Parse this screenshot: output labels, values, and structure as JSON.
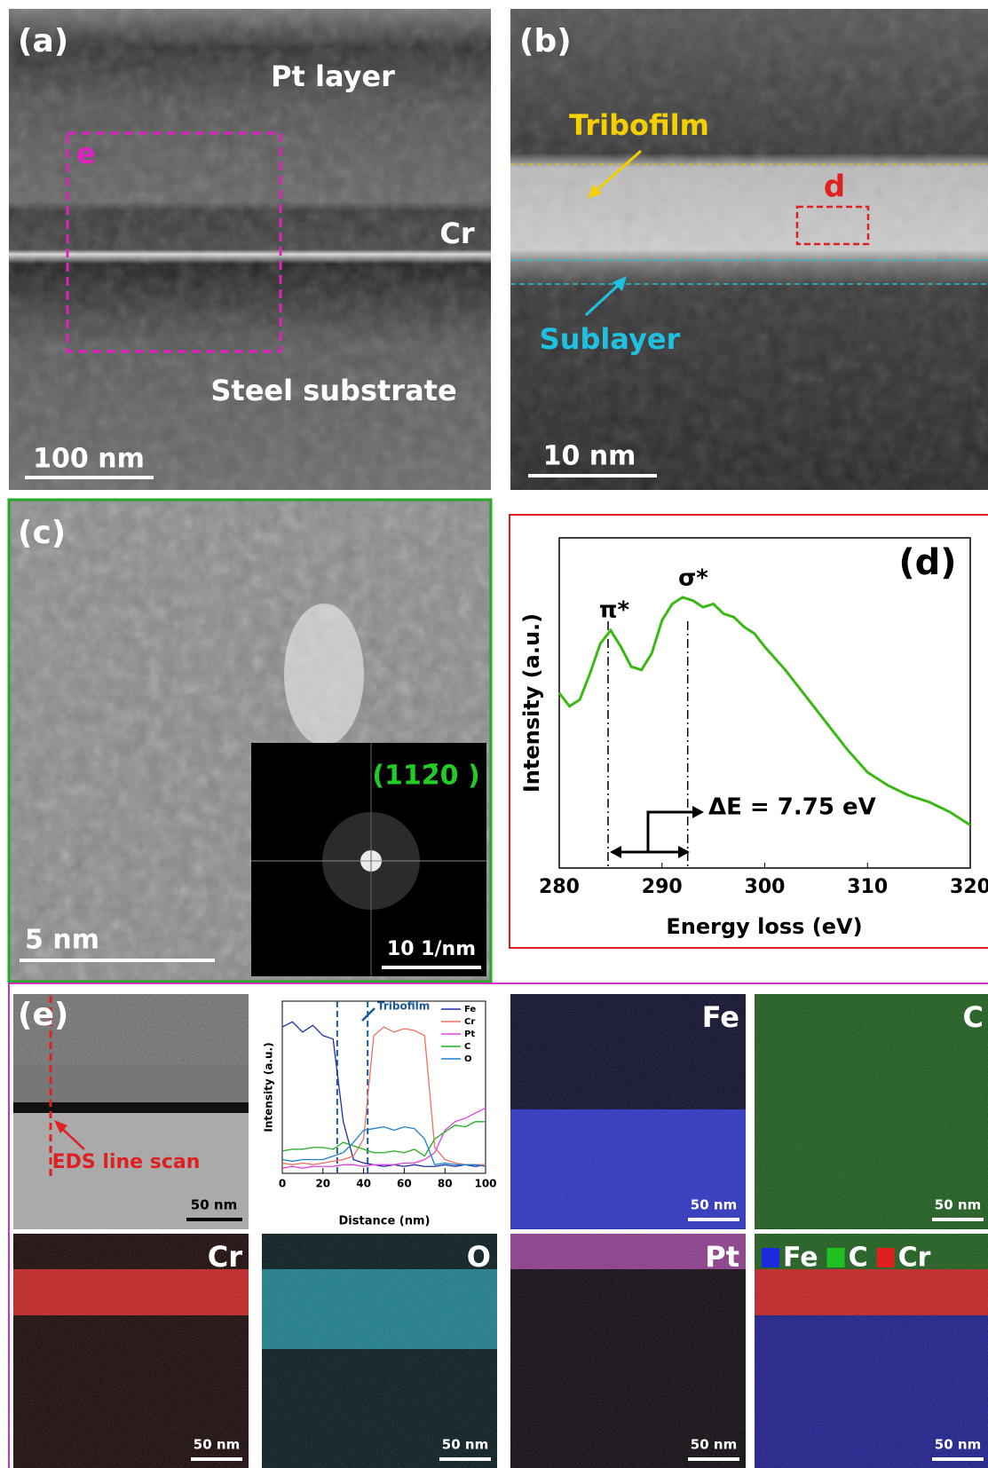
{
  "panels": {
    "a": {
      "label": "(a)",
      "annotations": [
        "Pt layer",
        "Cr",
        "Steel substrate"
      ],
      "box_label": "e",
      "scale_bar": "100 nm"
    },
    "b": {
      "label": "(b)",
      "tribofilm": "Tribofilm",
      "sublayer": "Sublayer",
      "box_label": "d",
      "scale_bar": "10 nm"
    },
    "c": {
      "label": "(c)",
      "scale_bar": "5 nm",
      "inset_label": "(112̄0 )",
      "inset_scale_bar": "10 1/nm"
    },
    "e": {
      "label": "(e)",
      "image_annotation": "EDS line scan",
      "image_scale_bar": "50 nm",
      "maps": [
        {
          "element": "Fe",
          "scale_bar": "50 nm"
        },
        {
          "element": "C",
          "scale_bar": "50 nm"
        },
        {
          "element": "Cr",
          "scale_bar": "50 nm"
        },
        {
          "element": "O",
          "scale_bar": "50 nm"
        },
        {
          "element": "Pt",
          "scale_bar": "50 nm"
        }
      ],
      "overlay_legend": [
        "Fe",
        "C",
        "Cr"
      ],
      "overlay_scale_bar": "50 nm"
    }
  },
  "chart_data": [
    {
      "type": "line",
      "panel_label": "(d)",
      "x_label": "Energy loss (eV)",
      "y_label": "Intensity (a.u.)",
      "annotations": {
        "pi": "π*",
        "sigma": "σ*",
        "delta": "ΔE = 7.75 eV"
      },
      "x": [
        280,
        281,
        282,
        283,
        284,
        285,
        286,
        287,
        288,
        289,
        290,
        291,
        292,
        293,
        294,
        295,
        296,
        297,
        298,
        299,
        300,
        302,
        304,
        306,
        308,
        310,
        312,
        314,
        316,
        318,
        320
      ],
      "series": [
        {
          "color": "#3cb814",
          "values": [
            0.53,
            0.49,
            0.51,
            0.59,
            0.68,
            0.72,
            0.67,
            0.61,
            0.6,
            0.65,
            0.75,
            0.8,
            0.82,
            0.81,
            0.79,
            0.8,
            0.77,
            0.76,
            0.73,
            0.71,
            0.67,
            0.6,
            0.52,
            0.44,
            0.36,
            0.29,
            0.25,
            0.22,
            0.2,
            0.17,
            0.13
          ]
        }
      ],
      "xlim": [
        280,
        320
      ],
      "xticks": [
        280,
        290,
        300,
        310,
        320
      ],
      "ylim": [
        0,
        1
      ],
      "reference_lines": [
        284.75,
        292.5
      ]
    },
    {
      "type": "line",
      "x_label": "Distance (nm)",
      "y_label": "Intensity (a.u.)",
      "annotation": "Tribofilm",
      "x": [
        0,
        5,
        10,
        15,
        20,
        25,
        30,
        35,
        40,
        45,
        50,
        55,
        60,
        65,
        70,
        75,
        80,
        85,
        90,
        95,
        100
      ],
      "series": [
        {
          "name": "Fe",
          "color": "#1c2ea8",
          "values": [
            0.85,
            0.88,
            0.82,
            0.86,
            0.8,
            0.78,
            0.3,
            0.08,
            0.06,
            0.05,
            0.04,
            0.05,
            0.04,
            0.05,
            0.04,
            0.04,
            0.05,
            0.04,
            0.05,
            0.04,
            0.05
          ]
        },
        {
          "name": "Cr",
          "color": "#f07060",
          "values": [
            0.06,
            0.05,
            0.06,
            0.05,
            0.06,
            0.07,
            0.08,
            0.1,
            0.2,
            0.8,
            0.85,
            0.82,
            0.84,
            0.83,
            0.8,
            0.15,
            0.08,
            0.06,
            0.05,
            0.05,
            0.05
          ]
        },
        {
          "name": "Pt",
          "color": "#e040e0",
          "values": [
            0.03,
            0.04,
            0.03,
            0.04,
            0.04,
            0.04,
            0.05,
            0.05,
            0.04,
            0.05,
            0.05,
            0.05,
            0.06,
            0.06,
            0.08,
            0.12,
            0.25,
            0.3,
            0.32,
            0.35,
            0.38
          ]
        },
        {
          "name": "C",
          "color": "#20b020",
          "values": [
            0.13,
            0.14,
            0.14,
            0.15,
            0.15,
            0.14,
            0.18,
            0.16,
            0.14,
            0.12,
            0.12,
            0.13,
            0.12,
            0.14,
            0.1,
            0.2,
            0.24,
            0.28,
            0.27,
            0.3,
            0.3
          ]
        },
        {
          "name": "O",
          "color": "#1a7fd0",
          "values": [
            0.08,
            0.07,
            0.08,
            0.08,
            0.08,
            0.1,
            0.12,
            0.18,
            0.25,
            0.26,
            0.27,
            0.25,
            0.27,
            0.26,
            0.2,
            0.05,
            0.06,
            0.05,
            0.05,
            0.05,
            0.04
          ]
        }
      ],
      "xlim": [
        0,
        100
      ],
      "xticks": [
        0,
        20,
        40,
        60,
        80,
        100
      ],
      "ylim": [
        0,
        1
      ],
      "reference_lines": [
        27,
        42
      ],
      "legend": "upper right"
    }
  ]
}
